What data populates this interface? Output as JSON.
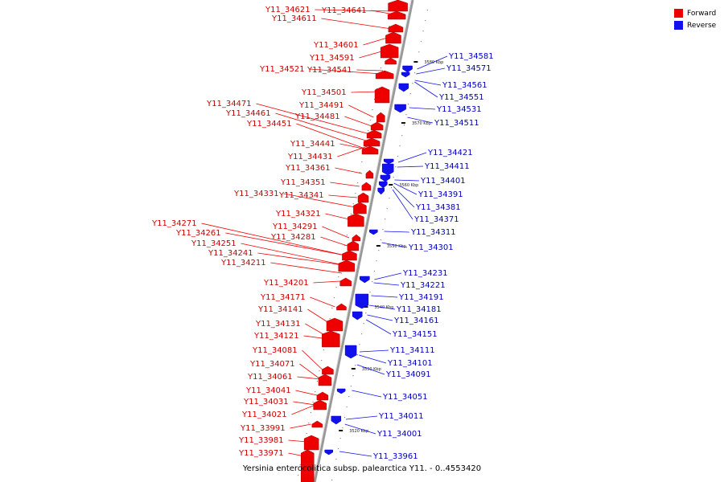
{
  "caption": "Yersinia enterocolitica subsp. palearctica Y11. - 0..4553420",
  "colors": {
    "forward": "#ee0000",
    "reverse": "#1111ee",
    "forward_label": "#cc0000",
    "reverse_label": "#0000bb",
    "backbone": "#999999"
  },
  "legend": [
    {
      "label": "Forward",
      "color": "#ee0000"
    },
    {
      "label": "Reverse",
      "color": "#1111ee"
    }
  ],
  "ticks": [
    "3580 Kbp",
    "3570 Kbp",
    "3560 Kbp",
    "3550 Kbp",
    "3540 Kbp",
    "3530 Kbp",
    "3520 Kbp"
  ],
  "forward_genes": [
    "Y11_34641",
    "Y11_34621",
    "Y11_34611",
    "Y11_34601",
    "Y11_34591",
    "Y11_34541",
    "Y11_34521",
    "Y11_34501",
    "Y11_34491",
    "Y11_34481",
    "Y11_34471",
    "Y11_34461",
    "Y11_34451",
    "Y11_34441",
    "Y11_34431",
    "Y11_34361",
    "Y11_34351",
    "Y11_34341",
    "Y11_34331",
    "Y11_34321",
    "Y11_34291",
    "Y11_34281",
    "Y11_34271",
    "Y11_34261",
    "Y11_34251",
    "Y11_34241",
    "Y11_34211",
    "Y11_34201",
    "Y11_34171",
    "Y11_34141",
    "Y11_34131",
    "Y11_34121",
    "Y11_34081",
    "Y11_34071",
    "Y11_34061",
    "Y11_34041",
    "Y11_34031",
    "Y11_34021",
    "Y11_33991",
    "Y11_33981",
    "Y11_33971"
  ],
  "reverse_genes": [
    "Y11_34581",
    "Y11_34571",
    "Y11_34561",
    "Y11_34551",
    "Y11_34531",
    "Y11_34511",
    "Y11_34421",
    "Y11_34411",
    "Y11_34401",
    "Y11_34391",
    "Y11_34381",
    "Y11_34371",
    "Y11_34311",
    "Y11_34301",
    "Y11_34231",
    "Y11_34221",
    "Y11_34191",
    "Y11_34181",
    "Y11_34161",
    "Y11_34151",
    "Y11_34111",
    "Y11_34101",
    "Y11_34091",
    "Y11_34051",
    "Y11_34011",
    "Y11_34001",
    "Y11_33961"
  ]
}
